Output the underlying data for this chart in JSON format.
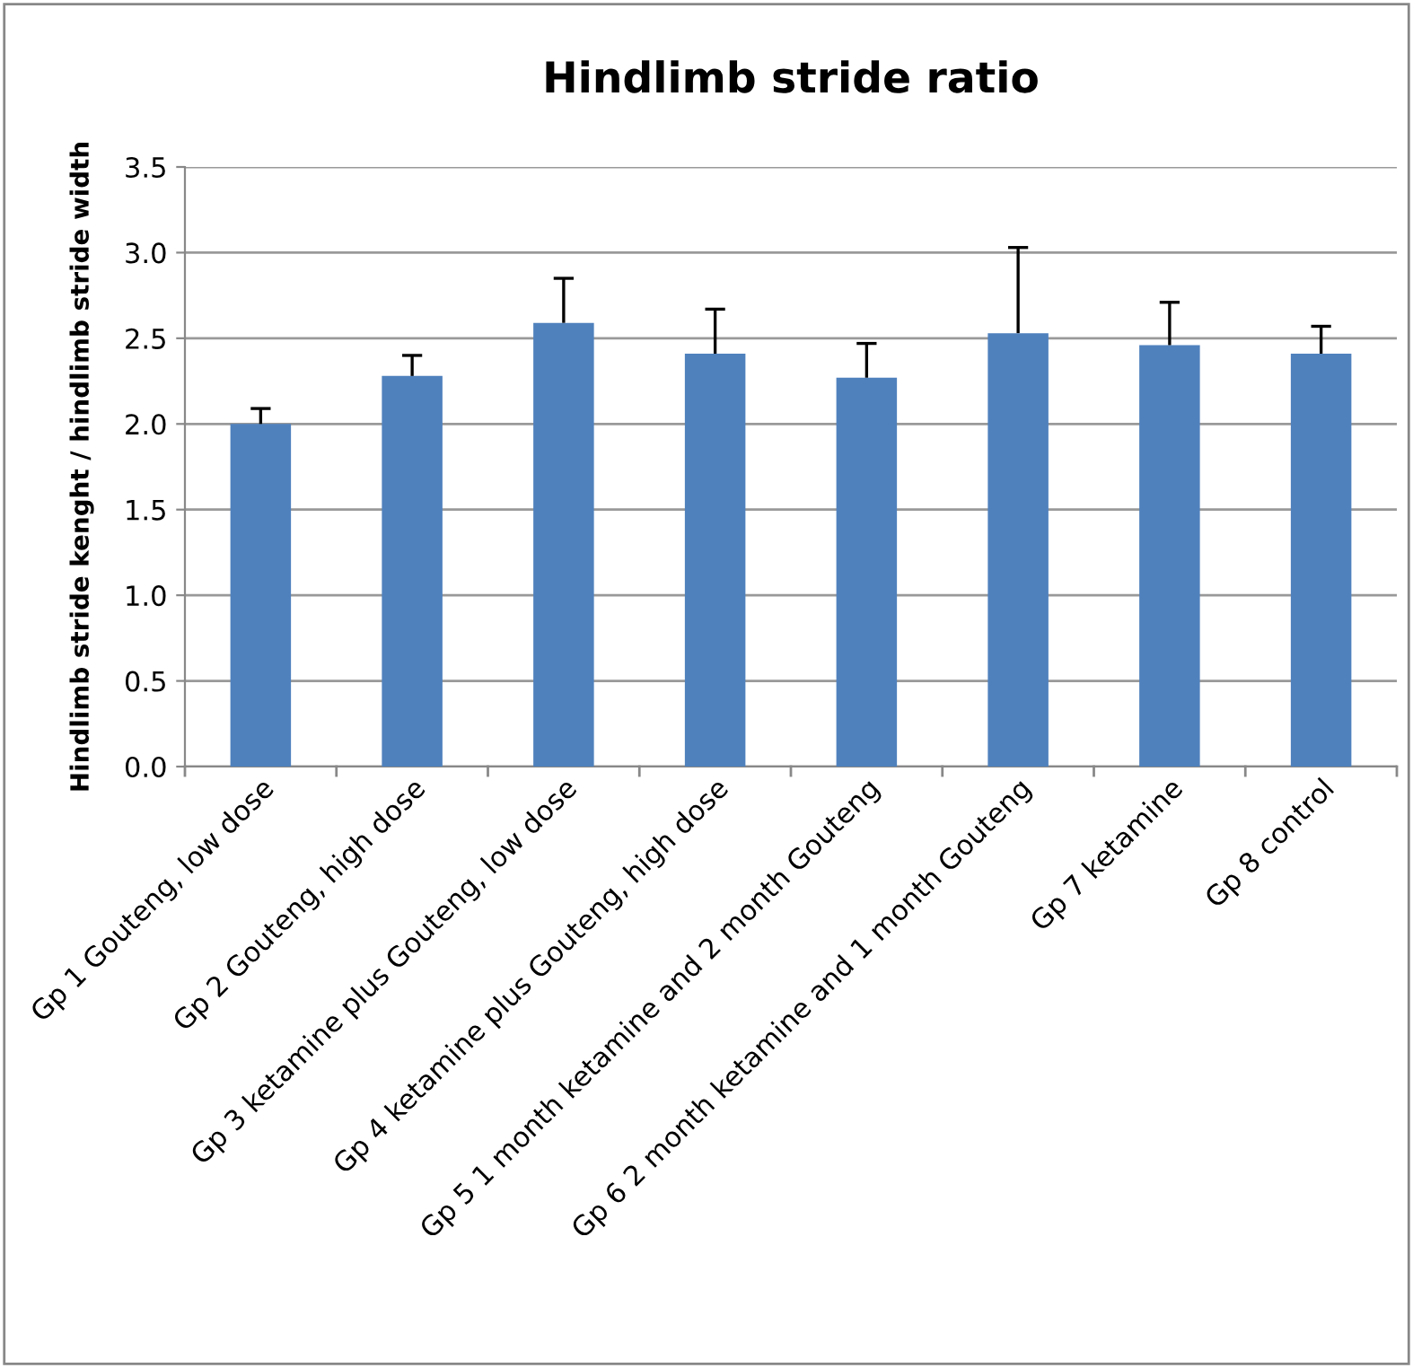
{
  "chart_data": {
    "type": "bar",
    "title": "Hindlimb stride ratio",
    "ylabel": "Hindlimb stride kenght / hindlimb stride width",
    "categories": [
      "Gp 1 Gouteng, low dose",
      "Gp 2 Gouteng, high dose",
      "Gp 3 ketamine plus Gouteng, low dose",
      "Gp 4 ketamine plus Gouteng, high dose",
      "Gp 5 1 month ketamine and 2 month Gouteng",
      "Gp 6 2 month ketamine and 1 month Gouteng",
      "Gp 7 ketamine",
      "Gp 8 control"
    ],
    "values": [
      2.0,
      2.28,
      2.59,
      2.41,
      2.27,
      2.53,
      2.46,
      2.41
    ],
    "errors": [
      [
        2.0,
        2.09
      ],
      [
        2.28,
        2.4
      ],
      [
        2.59,
        2.85
      ],
      [
        2.41,
        2.67
      ],
      [
        2.27,
        2.47
      ],
      [
        2.53,
        3.03
      ],
      [
        2.46,
        2.71
      ],
      [
        2.41,
        2.57
      ]
    ],
    "color": "#4f81bd",
    "ylim": [
      0,
      3.5
    ],
    "yticks": [
      {
        "value": 0,
        "label": "0.0"
      },
      {
        "value": 0.5,
        "label": "0.5"
      },
      {
        "value": 1,
        "label": "1.0"
      },
      {
        "value": 1.5,
        "label": "1.5"
      },
      {
        "value": 2,
        "label": "2.0"
      },
      {
        "value": 2.5,
        "label": "2.5"
      },
      {
        "value": 3,
        "label": "3.0"
      },
      {
        "value": 3.5,
        "label": "3.5"
      }
    ],
    "grid": "y"
  }
}
